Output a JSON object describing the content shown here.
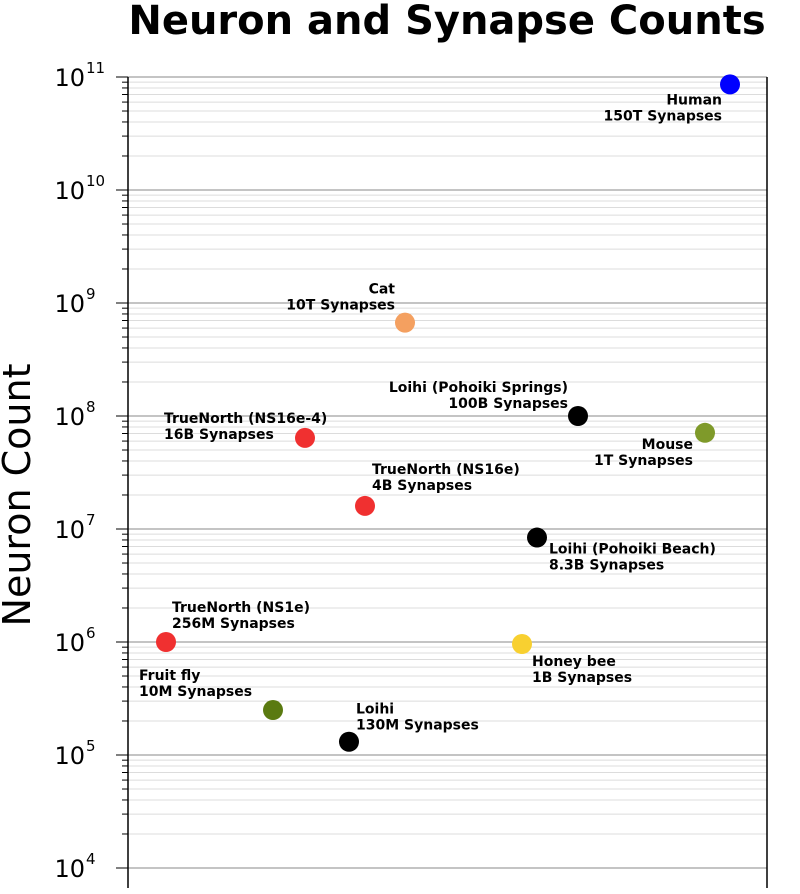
{
  "chart_data": {
    "type": "scatter",
    "title": "Neuron and Synapse Counts",
    "xlabel": "",
    "ylabel": "Neuron Count",
    "yscale": "log",
    "ylim": [
      10000,
      100000000000
    ],
    "grid": "horizontal major and minor",
    "yticks": [
      {
        "base": "10",
        "exp": "4",
        "value": 10000
      },
      {
        "base": "10",
        "exp": "5",
        "value": 100000
      },
      {
        "base": "10",
        "exp": "6",
        "value": 1000000
      },
      {
        "base": "10",
        "exp": "7",
        "value": 10000000
      },
      {
        "base": "10",
        "exp": "8",
        "value": 100000000
      },
      {
        "base": "10",
        "exp": "9",
        "value": 1000000000
      },
      {
        "base": "10",
        "exp": "10",
        "value": 10000000000
      },
      {
        "base": "10",
        "exp": "11",
        "value": 100000000000
      }
    ],
    "points": [
      {
        "name": "Human",
        "synapses": "150T Synapses",
        "neurons": 86000000000,
        "color": "#0000ff",
        "label_side": "left"
      },
      {
        "name": "Cat",
        "synapses": "10T Synapses",
        "neurons": 670000000,
        "color": "#f4a060",
        "label_side": "left"
      },
      {
        "name": "Loihi (Pohoiki Springs)",
        "synapses": "100B Synapses",
        "neurons": 100000000,
        "color": "#000000",
        "label_side": "left"
      },
      {
        "name": "Mouse",
        "synapses": "1T Synapses",
        "neurons": 71000000,
        "color": "#7f9a2a",
        "label_side": "left"
      },
      {
        "name": "TrueNorth (NS16e-4)",
        "synapses": "16B Synapses",
        "neurons": 64000000,
        "color": "#f03030",
        "label_side": "left"
      },
      {
        "name": "TrueNorth (NS16e)",
        "synapses": "4B Synapses",
        "neurons": 16000000,
        "color": "#f03030",
        "label_side": "right"
      },
      {
        "name": "Loihi (Pohoiki Beach)",
        "synapses": "8.3B Synapses",
        "neurons": 8400000,
        "color": "#000000",
        "label_side": "right"
      },
      {
        "name": "TrueNorth (NS1e)",
        "synapses": "256M Synapses",
        "neurons": 1000000,
        "color": "#f03030",
        "label_side": "right"
      },
      {
        "name": "Honey bee",
        "synapses": "1B Synapses",
        "neurons": 960000,
        "color": "#f8d030",
        "label_side": "right"
      },
      {
        "name": "Fruit fly",
        "synapses": "10M Synapses",
        "neurons": 250000,
        "color": "#5a7a10",
        "label_side": "left"
      },
      {
        "name": "Loihi",
        "synapses": "130M Synapses",
        "neurons": 131000,
        "color": "#000000",
        "label_side": "right"
      }
    ]
  }
}
